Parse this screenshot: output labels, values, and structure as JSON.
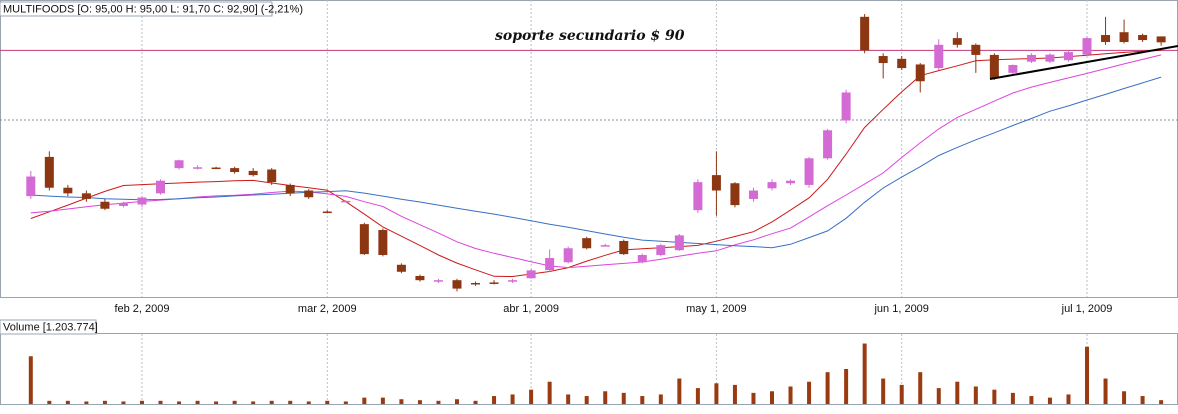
{
  "chart_data": [
    {
      "type": "candlestick",
      "title": "MULTIFOODS [O: 95,00  H: 95,00  L: 91,70  C: 92,90] (-2,21%)",
      "annotation": "soporte secundario $ 90",
      "support_level": 90,
      "categories": [
        null,
        null,
        null,
        null,
        null,
        null,
        "feb 2, 2009",
        null,
        null,
        null,
        null,
        null,
        null,
        null,
        null,
        null,
        "mar 2, 2009",
        null,
        null,
        null,
        null,
        null,
        null,
        null,
        null,
        null,
        null,
        "abr 1, 2009",
        null,
        null,
        null,
        null,
        null,
        null,
        null,
        null,
        null,
        "may 1, 2009",
        null,
        null,
        null,
        null,
        null,
        null,
        null,
        null,
        null,
        "jun 1, 2009",
        null,
        null,
        null,
        null,
        null,
        null,
        null,
        null,
        null,
        "jul 1, 2009",
        null,
        null,
        null,
        null
      ],
      "open": [
        38,
        52,
        41,
        39,
        36,
        34.5,
        35,
        39,
        48,
        48,
        48.2,
        48,
        47,
        47.5,
        42,
        40,
        32.5,
        36.2,
        28,
        25.9,
        13.5,
        9.5,
        7.5,
        8,
        7,
        7.2,
        7.5,
        8.7,
        11.6,
        14.4,
        23,
        20.5,
        22,
        14.4,
        17,
        18.7,
        33,
        45.5,
        42.6,
        37,
        40.8,
        42.6,
        42,
        51.5,
        65,
        102,
        88,
        87,
        85,
        83.7,
        94.4,
        92,
        88.4,
        82,
        86,
        86,
        86.5,
        88.5,
        95.5,
        96.5,
        95.5,
        95
      ],
      "high": [
        47,
        54,
        42,
        40,
        37,
        36,
        38,
        44,
        51,
        49,
        48.5,
        48.5,
        48,
        48,
        42.5,
        40.5,
        33,
        36.5,
        28.5,
        26.5,
        14,
        10,
        8.5,
        8.5,
        7.5,
        8,
        8.5,
        12,
        19,
        20,
        23.5,
        21,
        22.5,
        17.5,
        21,
        24.5,
        44,
        54,
        43,
        41,
        44,
        44,
        52,
        62,
        76,
        103,
        89,
        88,
        85.5,
        94,
        96.5,
        92.5,
        89,
        85,
        89,
        89,
        90,
        95,
        102,
        101,
        96,
        95
      ],
      "low": [
        37,
        40,
        38,
        36,
        33,
        34,
        34,
        38.5,
        47.5,
        47.5,
        47.8,
        46,
        45,
        42,
        38,
        37,
        32,
        36,
        17,
        16.5,
        10.5,
        7.5,
        7,
        4,
        6,
        6.5,
        7,
        8.5,
        11,
        14,
        19,
        20,
        17,
        14,
        16.5,
        18.5,
        32,
        31,
        34,
        36,
        40,
        42,
        41,
        51,
        64,
        89,
        80,
        83,
        75,
        83,
        91,
        82,
        79.5,
        81,
        85.5,
        85.5,
        86,
        88,
        92,
        92.5,
        93,
        91.7
      ],
      "close": [
        45,
        41,
        39,
        37,
        33.5,
        35.5,
        37.5,
        43.5,
        50.8,
        48.3,
        48,
        46.6,
        45.5,
        43,
        39,
        37.6,
        32.3,
        36.3,
        17.3,
        17,
        11,
        8,
        8,
        5,
        6.8,
        7,
        8,
        11.5,
        15.9,
        19.4,
        19.4,
        20.5,
        17.3,
        17,
        20.5,
        24,
        43,
        40,
        34.8,
        40,
        43,
        43.5,
        51.5,
        61.5,
        75,
        90,
        85.5,
        83.7,
        79,
        92,
        92,
        88.4,
        80,
        84.8,
        88.4,
        88.5,
        89.4,
        94.4,
        93,
        93,
        93.7,
        92.9
      ],
      "up_color": "#d46ad4",
      "down_color": "#8c3612",
      "series": [
        {
          "color": "#cc1a1a",
          "values": [
            30,
            32.4,
            34.8,
            37.3,
            39.7,
            41.8,
            42.1,
            42.4,
            42.7,
            43,
            43.2,
            43.5,
            43.6,
            42.7,
            41.8,
            41,
            40.1,
            36,
            31.6,
            27,
            23.7,
            20.4,
            17,
            14.1,
            11.7,
            9.4,
            9.3,
            10.2,
            11.1,
            12.5,
            14.8,
            16.9,
            18.8,
            19.2,
            19.6,
            20,
            20.4,
            21.9,
            23.6,
            25.3,
            28.8,
            33,
            37.4,
            44,
            53,
            62.5,
            69,
            75.2,
            81,
            82.8,
            84.5,
            86.3,
            86.7,
            86.9,
            87.1,
            87.3,
            87.8,
            88.3,
            88.8,
            89.3,
            89.7,
            90
          ]
        },
        {
          "color": "#dd44dd",
          "values": [
            32,
            32.6,
            33.4,
            34.2,
            34.9,
            35.5,
            36.1,
            36.6,
            37.1,
            37.7,
            38.1,
            38.3,
            38.7,
            39.3,
            39.8,
            39.5,
            38.8,
            37.9,
            36,
            34.3,
            30.8,
            27.8,
            24.8,
            21.7,
            19.3,
            17.6,
            16.1,
            14.6,
            13.1,
            12.5,
            13,
            13.5,
            14,
            14.5,
            15.5,
            16.6,
            17.6,
            18.5,
            20.6,
            22.4,
            24.6,
            26.6,
            30.6,
            34.6,
            38.4,
            42.3,
            46.3,
            51.8,
            57,
            62,
            66.1,
            69,
            71.9,
            74.8,
            76.9,
            78.6,
            80.2,
            81.8,
            83.5,
            85.2,
            86.8,
            88.4
          ]
        },
        {
          "color": "#3a6fc4",
          "values": [
            38.4,
            38,
            37.7,
            37.5,
            37.1,
            36.9,
            36.7,
            36.8,
            37.1,
            37.4,
            37.7,
            38.1,
            38.4,
            38.7,
            39,
            39.4,
            39.6,
            39.9,
            39.1,
            38,
            36.9,
            35.9,
            34.8,
            33.7,
            32.6,
            31.6,
            30.4,
            29.2,
            28,
            26.9,
            25.7,
            24.5,
            23.3,
            22.3,
            21.9,
            21.5,
            21.1,
            20.7,
            20.3,
            20,
            19.6,
            20.8,
            23.2,
            25.6,
            30.1,
            35.8,
            40.9,
            44.8,
            48.5,
            52.5,
            55.4,
            58.1,
            60.6,
            63.2,
            65.7,
            68.3,
            70.2,
            72.3,
            74.3,
            76.4,
            78.4,
            80.5
          ]
        }
      ],
      "ylim": [
        2,
        108
      ],
      "grid": true
    },
    {
      "type": "bar",
      "title": "Volume [1.203.774]",
      "color": "#9a3a10",
      "values": [
        15000000,
        1000000,
        1000000,
        800000,
        1000000,
        800000,
        1000000,
        1000000,
        800000,
        1000000,
        800000,
        1000000,
        800000,
        1000000,
        1000000,
        800000,
        1000000,
        800000,
        2000000,
        2000000,
        1500000,
        1200000,
        1000000,
        1500000,
        1000000,
        2500000,
        3000000,
        4500000,
        7000000,
        3000000,
        2500000,
        4000000,
        3500000,
        2500000,
        3000000,
        8000000,
        5000000,
        6500000,
        6000000,
        3500000,
        4000000,
        5500000,
        7000000,
        10000000,
        11000000,
        19000000,
        8000000,
        6000000,
        10000000,
        5000000,
        7000000,
        5500000,
        4500000,
        3500000,
        2500000,
        2000000,
        3000000,
        18000000,
        8000000,
        4000000,
        2500000,
        1203774
      ],
      "ylim": [
        0,
        22000000
      ]
    }
  ]
}
